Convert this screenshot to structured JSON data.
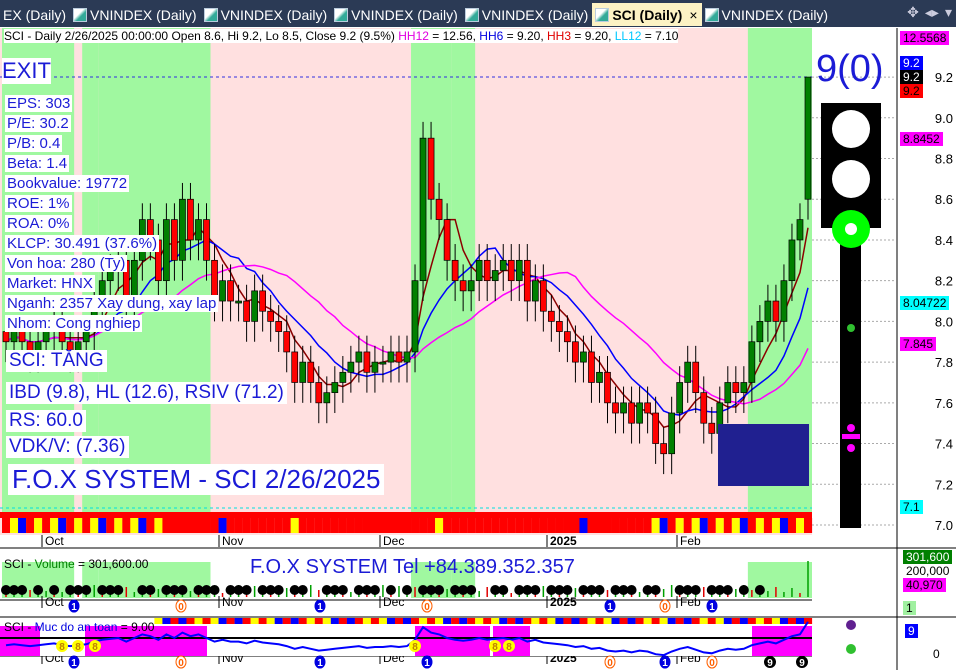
{
  "tabs": [
    {
      "label": "EX (Daily)",
      "active": false
    },
    {
      "label": "VNINDEX (Daily)",
      "active": false
    },
    {
      "label": "VNINDEX (Daily)",
      "active": false
    },
    {
      "label": "VNINDEX (Daily)",
      "active": false
    },
    {
      "label": "VNINDEX (Daily)",
      "active": false
    },
    {
      "label": "SCI (Daily)",
      "active": true
    },
    {
      "label": "VNINDEX (Daily)",
      "active": false
    }
  ],
  "tab_close": "×",
  "header": {
    "prefix": "SCI - Daily 2/26/2025 00:00:00 Open 8.6, Hi 9.2, Lo 8.5, Close 9.2 (9.5%) ",
    "hh12": "HH12",
    "hh12v": " = 12.56, ",
    "hh6": "HH6",
    "hh6v": " = 9.20, ",
    "hh3": "HH3",
    "hh3v": " = 9.20, ",
    "ll12": "LL12",
    "ll12v": " = 7.10"
  },
  "overlay": {
    "exit": "EXIT",
    "signal": "9(0)",
    "fundamentals": [
      "EPS: 303",
      "P/E: 30.2",
      "P/B: 0.4",
      "Beta: 1.4",
      "Bookvalue: 19772",
      "ROE: 1%",
      "ROA: 0%",
      "KLCP: 30.491 (37.6%)",
      "Von hoa: 280 (Ty)",
      "Market: HNX",
      "Nganh: 2357 Xay dung, xay lap",
      "Nhom: Cong nghiep"
    ],
    "trend": "SCI: TĂNG",
    "ibd": "IBD (9.8), HL (12.6), RSIV (71.2)",
    "rs": "RS: 60.0",
    "vdk": "VDK/V:  (7.36)",
    "brand": "F.O.X SYSTEM - SCI 2/26/2025"
  },
  "price_axis": {
    "ticks": [
      "9.2",
      "9.0",
      "8.8",
      "8.6",
      "8.4",
      "8.2",
      "8.0",
      "7.8",
      "7.6",
      "7.4",
      "7.2",
      "7.0"
    ],
    "labels": [
      {
        "text": "12.5568",
        "bg": "#ff00ff"
      },
      {
        "text": "9.2",
        "bg": "#0000ff",
        "color": "#fff"
      },
      {
        "text": "9.2",
        "bg": "#000",
        "color": "#fff"
      },
      {
        "text": "9.2",
        "bg": "#ff0000"
      },
      {
        "text": "8.8452",
        "bg": "#ff00ff"
      },
      {
        "text": "8.04722",
        "bg": "#00ffff"
      },
      {
        "text": "7.845",
        "bg": "#ff00ff"
      },
      {
        "text": "7.1",
        "bg": "#00ffff"
      }
    ]
  },
  "months": [
    "Oct",
    "Nov",
    "Dec",
    "2025",
    "Feb"
  ],
  "volume": {
    "title_sym": "SCI - ",
    "title_name": "Volume",
    "title_val": " = 301,600.00",
    "tel": "F.O.X SYSTEM Tel +84.389.352.357",
    "labels": [
      {
        "text": "301,600",
        "bg": "#008000",
        "color": "#fff"
      },
      {
        "text": "200,000",
        "bg": "none"
      },
      {
        "text": "40,970",
        "bg": "#ff00ff"
      },
      {
        "text": "1",
        "bg": "#a0f0a0"
      }
    ]
  },
  "safety": {
    "title_sym": "SCI - ",
    "title_name": "Muc do an toan",
    "title_val": " = 9.00",
    "value_label": "9",
    "zero_label": "0",
    "markers": [
      "8",
      "8",
      "8",
      "8",
      "8",
      "8",
      "9",
      "9"
    ]
  },
  "pane_markers": {
    "vol_digits": [
      "1",
      "0",
      "1",
      "0",
      "1",
      "0",
      "1"
    ],
    "safe_digits": [
      "1",
      "0",
      "1",
      "1",
      "0",
      "1",
      "0",
      "1"
    ]
  },
  "colors": {
    "up": "#008000",
    "down": "#ff0000",
    "green_zone": "#a0f8a0",
    "pink_zone": "#ffe0e0",
    "accent": "#1b1bd6"
  },
  "chart_data": {
    "type": "candlestick",
    "symbol": "SCI",
    "ylim": [
      7.0,
      9.3
    ],
    "close": [
      7.9,
      7.95,
      7.9,
      7.85,
      7.9,
      7.95,
      8.0,
      7.9,
      7.85,
      7.9,
      7.95,
      8.1,
      8.2,
      8.25,
      8.3,
      8.1,
      8.3,
      8.5,
      8.4,
      8.2,
      8.5,
      8.3,
      8.6,
      8.4,
      8.5,
      8.3,
      8.1,
      8.2,
      8.1,
      8.1,
      8.0,
      8.15,
      8.05,
      8.0,
      7.95,
      7.85,
      7.7,
      7.8,
      7.7,
      7.6,
      7.65,
      7.7,
      7.75,
      7.8,
      7.85,
      7.75,
      7.8,
      7.8,
      7.85,
      7.8,
      7.85,
      8.2,
      8.9,
      8.6,
      8.5,
      8.3,
      8.2,
      8.15,
      8.2,
      8.3,
      8.2,
      8.25,
      8.3,
      8.2,
      8.3,
      8.1,
      8.2,
      8.05,
      8.0,
      7.95,
      7.9,
      7.8,
      7.85,
      7.7,
      7.75,
      7.6,
      7.55,
      7.6,
      7.5,
      7.6,
      7.55,
      7.4,
      7.35,
      7.55,
      7.7,
      7.8,
      7.65,
      7.5,
      7.45,
      7.6,
      7.7,
      7.65,
      7.7,
      7.9,
      8.0,
      8.1,
      8.0,
      8.2,
      8.4,
      8.5,
      9.2
    ],
    "green_zones": [
      [
        0,
        8
      ],
      [
        10,
        11
      ],
      [
        12,
        25
      ],
      [
        51,
        55
      ],
      [
        56,
        58
      ],
      [
        93,
        100
      ]
    ],
    "last": {
      "open": 8.6,
      "high": 9.2,
      "low": 8.5,
      "close": 9.2
    }
  }
}
